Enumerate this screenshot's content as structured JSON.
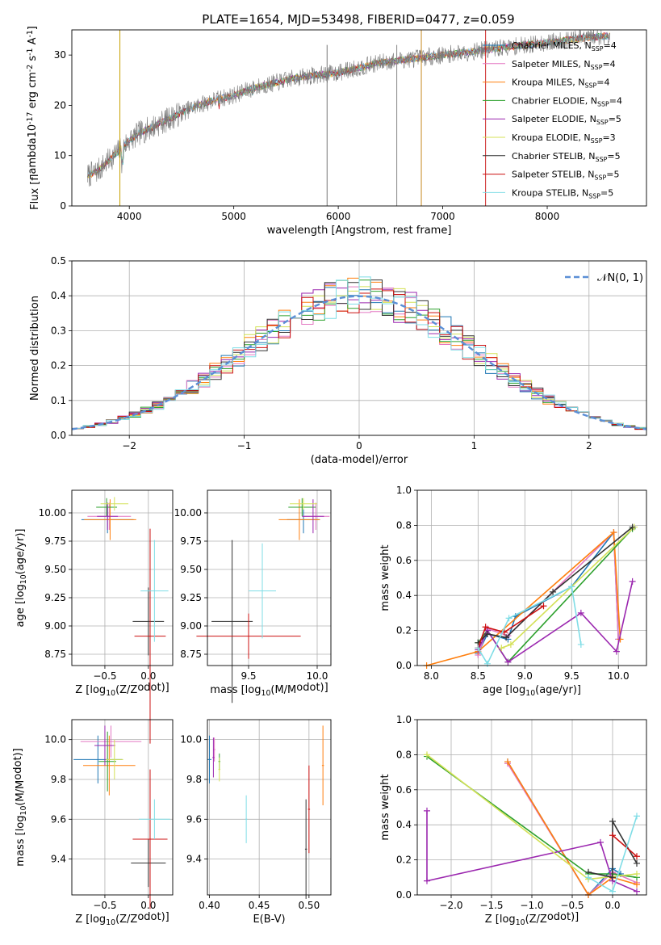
{
  "figure_title": "PLATE=1654, MJD=53498, FIBERID=0477, z=0.059",
  "legend_labels": [
    "Chabrier MILES, N$_{SSP}$=4",
    "Salpeter MILES, N$_{SSP}$=4",
    "Kroupa MILES, N$_{SSP}$=4",
    "Chabrier ELODIE, N$_{SSP}$=4",
    "Salpeter ELODIE, N$_{SSP}$=5",
    "Kroupa ELODIE, N$_{SSP}$=3",
    "Chabrier STELIB, N$_{SSP}$=5",
    "Salpeter STELIB, N$_{SSP}$=5",
    "Kroupa STELIB, N$_{SSP}$=5"
  ],
  "series_colors": [
    "#1f77b4",
    "#e377c2",
    "#ff7f0e",
    "#2ca02c",
    "#9b27af",
    "#d4e157",
    "#333333",
    "#cc1111",
    "#7fdde6"
  ],
  "chart_data": [
    {
      "id": "spectrum",
      "type": "line",
      "xlabel": "wavelength [Angstrom, rest frame]",
      "ylabel": "Flux [f$_\\lambda$10$^{-17}$ erg cm$^{-2}$ s$^{-1}$ A$^{-1}$]",
      "xlim": [
        3450,
        8950
      ],
      "ylim": [
        0,
        35
      ],
      "xticks": [
        4000,
        5000,
        6000,
        7000,
        8000
      ],
      "yticks": [
        0,
        10,
        20,
        30
      ],
      "grid": false,
      "legend_position": "right",
      "continuum": {
        "x": [
          3600,
          3700,
          3800,
          3900,
          4000,
          4100,
          4200,
          4400,
          4600,
          4800,
          5000,
          5200,
          5400,
          5600,
          5800,
          6000,
          6200,
          6400,
          6600,
          6800,
          7000,
          7200,
          7400,
          7600,
          7800,
          8000,
          8200,
          8400,
          8600
        ],
        "y": [
          6,
          7,
          9,
          11,
          13,
          14.5,
          15.5,
          17.5,
          19.5,
          21,
          22,
          23.5,
          24.5,
          25.5,
          26,
          26.5,
          27.5,
          28.5,
          29,
          29.5,
          30,
          30.5,
          31,
          31.5,
          32,
          32.5,
          33,
          33.5,
          33.8
        ]
      }
    },
    {
      "id": "residuals",
      "type": "bar",
      "xlabel": "(data-model)/error",
      "ylabel": "Normed distribution",
      "xlim": [
        -2.5,
        2.5
      ],
      "ylim": [
        0,
        0.5
      ],
      "xticks": [
        -2,
        -1,
        0,
        1,
        2
      ],
      "yticks": [
        0.0,
        0.1,
        0.2,
        0.3,
        0.4,
        0.5
      ],
      "grid": true,
      "legend": "$\\mathcal{N}(0, 1)$",
      "legend_position": "top-right",
      "bin_width": 0.1
    },
    {
      "id": "age-vs-z",
      "type": "scatter",
      "xlabel": "Z [log$_{10}$($Z/Z_\\odot$)]",
      "ylabel": "age  [log$_{10}$($age/yr$)]",
      "xlim": [
        -0.88,
        0.28
      ],
      "ylim": [
        8.65,
        10.2
      ],
      "xticks": [
        -0.5,
        0.0
      ],
      "yticks": [
        8.75,
        9.0,
        9.25,
        9.5,
        9.75,
        10.0
      ],
      "grid": true,
      "points": [
        {
          "x": -0.47,
          "y": 9.94,
          "xerr": 0.3,
          "yerr": 0.12
        },
        {
          "x": -0.45,
          "y": 9.97,
          "xerr": 0.25,
          "yerr": 0.12
        },
        {
          "x": -0.44,
          "y": 9.94,
          "xerr": 0.3,
          "yerr": 0.18
        },
        {
          "x": -0.48,
          "y": 10.05,
          "xerr": 0.12,
          "yerr": 0.08
        },
        {
          "x": -0.47,
          "y": 9.97,
          "xerr": 0.12,
          "yerr": 0.12
        },
        {
          "x": -0.39,
          "y": 10.08,
          "xerr": 0.16,
          "yerr": 0.06
        },
        {
          "x": 0.0,
          "y": 9.04,
          "xerr": 0.18,
          "yerr": 0.3
        },
        {
          "x": 0.02,
          "y": 8.91,
          "xerr": 0.18,
          "yerr": 0.95
        },
        {
          "x": 0.07,
          "y": 9.31,
          "xerr": 0.16,
          "yerr": 0.45
        }
      ]
    },
    {
      "id": "age-vs-mass",
      "type": "scatter",
      "xlabel": "mass [log$_{10}$($M/M_\\odot$)]",
      "ylabel": "",
      "xlim": [
        9.2,
        10.1
      ],
      "ylim": [
        8.65,
        10.2
      ],
      "xticks": [
        9.5,
        10.0
      ],
      "yticks": [
        8.75,
        9.0,
        9.25,
        9.5,
        9.75,
        10.0
      ],
      "grid": true,
      "points": [
        {
          "x": 9.9,
          "y": 9.94,
          "xerr": 0.12,
          "yerr": 0.12
        },
        {
          "x": 9.99,
          "y": 9.97,
          "xerr": 0.1,
          "yerr": 0.12
        },
        {
          "x": 9.87,
          "y": 9.94,
          "xerr": 0.15,
          "yerr": 0.18
        },
        {
          "x": 9.89,
          "y": 10.05,
          "xerr": 0.1,
          "yerr": 0.08
        },
        {
          "x": 9.97,
          "y": 9.97,
          "xerr": 0.08,
          "yerr": 0.15
        },
        {
          "x": 9.9,
          "y": 10.08,
          "xerr": 0.1,
          "yerr": 0.05
        },
        {
          "x": 9.38,
          "y": 9.04,
          "xerr": 0.15,
          "yerr": 0.72
        },
        {
          "x": 9.5,
          "y": 8.91,
          "xerr": 0.38,
          "yerr": 0.2
        },
        {
          "x": 9.6,
          "y": 9.31,
          "xerr": 0.1,
          "yerr": 0.42
        }
      ]
    },
    {
      "id": "weight-vs-age",
      "type": "line",
      "xlabel": "age  [log$_{10}$($age/yr$)]",
      "ylabel": "mass weight",
      "xlim": [
        7.85,
        10.3
      ],
      "ylim": [
        0,
        1.0
      ],
      "xticks": [
        8.0,
        8.5,
        9.0,
        9.5,
        10.0
      ],
      "yticks": [
        0.0,
        0.2,
        0.4,
        0.6,
        0.8,
        1.0
      ],
      "grid": true,
      "series": [
        {
          "x": [
            8.5,
            8.6,
            8.82,
            8.9,
            9.5,
            9.95,
            10.0
          ],
          "y": [
            0.07,
            0.18,
            0.15,
            0.28,
            0.45,
            0.76,
            0.15
          ]
        },
        {
          "x": [
            8.5,
            8.6,
            8.82,
            9.95,
            10.0
          ],
          "y": [
            0.06,
            0.21,
            0.17,
            0.76,
            0.15
          ]
        },
        {
          "x": [
            7.95,
            8.5,
            9.95,
            10.02
          ],
          "y": [
            0.0,
            0.08,
            0.76,
            0.15
          ]
        },
        {
          "x": [
            8.5,
            8.6,
            8.82,
            10.15
          ],
          "y": [
            0.13,
            0.2,
            0.02,
            0.78
          ]
        },
        {
          "x": [
            8.5,
            8.6,
            8.82,
            9.6,
            9.98,
            10.15
          ],
          "y": [
            0.09,
            0.2,
            0.02,
            0.3,
            0.08,
            0.48
          ]
        },
        {
          "x": [
            8.75,
            8.85,
            10.17
          ],
          "y": [
            0.1,
            0.12,
            0.79
          ]
        },
        {
          "x": [
            8.5,
            8.6,
            8.8,
            9.3,
            10.15
          ],
          "y": [
            0.13,
            0.18,
            0.16,
            0.42,
            0.79
          ]
        },
        {
          "x": [
            8.5,
            8.58,
            8.78,
            9.2
          ],
          "y": [
            0.1,
            0.22,
            0.19,
            0.34
          ]
        },
        {
          "x": [
            8.5,
            8.6,
            8.83,
            9.5,
            9.6
          ],
          "y": [
            0.1,
            0.01,
            0.27,
            0.45,
            0.12
          ]
        }
      ]
    },
    {
      "id": "mass-vs-z",
      "type": "scatter",
      "xlabel": "Z [log$_{10}$($Z/Z_\\odot$)]",
      "ylabel": "mass [log$_{10}$($M/M_\\odot$)]",
      "xlim": [
        -0.88,
        0.28
      ],
      "ylim": [
        9.22,
        10.1
      ],
      "xticks": [
        -0.5,
        0.0
      ],
      "yticks": [
        9.4,
        9.6,
        9.8,
        10.0
      ],
      "grid": true,
      "points": [
        {
          "x": -0.58,
          "y": 9.9,
          "xerr": 0.28,
          "yerr": 0.12
        },
        {
          "x": -0.43,
          "y": 9.99,
          "xerr": 0.35,
          "yerr": 0.08
        },
        {
          "x": -0.45,
          "y": 9.87,
          "xerr": 0.3,
          "yerr": 0.15
        },
        {
          "x": -0.47,
          "y": 9.89,
          "xerr": 0.1,
          "yerr": 0.15
        },
        {
          "x": -0.5,
          "y": 9.97,
          "xerr": 0.12,
          "yerr": 0.1
        },
        {
          "x": -0.39,
          "y": 9.9,
          "xerr": 0.1,
          "yerr": 0.1
        },
        {
          "x": 0.0,
          "y": 9.38,
          "xerr": 0.2,
          "yerr": 0.12
        },
        {
          "x": 0.02,
          "y": 9.5,
          "xerr": 0.2,
          "yerr": 0.35
        },
        {
          "x": 0.07,
          "y": 9.6,
          "xerr": 0.18,
          "yerr": 0.1
        }
      ]
    },
    {
      "id": "mass-vs-ebv",
      "type": "scatter",
      "xlabel": "E(B-V)",
      "ylabel": "",
      "xlim": [
        0.398,
        0.522
      ],
      "ylim": [
        9.22,
        10.1
      ],
      "xticks": [
        0.4,
        0.45,
        0.5
      ],
      "yticks": [
        9.4,
        9.6,
        9.8,
        10.0
      ],
      "grid": true,
      "points": [
        {
          "x": 0.4,
          "y": 9.9,
          "xerr": 0.002,
          "yerr": 0.12
        },
        {
          "x": 0.405,
          "y": 9.95,
          "xerr": 0.001,
          "yerr": 0.06
        },
        {
          "x": 0.514,
          "y": 9.87,
          "xerr": 0.001,
          "yerr": 0.2
        },
        {
          "x": 0.41,
          "y": 9.89,
          "xerr": 0.001,
          "yerr": 0.04
        },
        {
          "x": 0.404,
          "y": 9.91,
          "xerr": 0.001,
          "yerr": 0.1
        },
        {
          "x": 0.41,
          "y": 9.85,
          "xerr": 0.001,
          "yerr": 0.06
        },
        {
          "x": 0.497,
          "y": 9.45,
          "xerr": 0.001,
          "yerr": 0.25
        },
        {
          "x": 0.5,
          "y": 9.65,
          "xerr": 0.001,
          "yerr": 0.22
        },
        {
          "x": 0.437,
          "y": 9.6,
          "xerr": 0.001,
          "yerr": 0.12
        }
      ]
    },
    {
      "id": "weight-vs-z",
      "type": "line",
      "xlabel": "Z [log$_{10}$($Z/Z_\\odot$)]",
      "ylabel": "mass weight",
      "xlim": [
        -2.42,
        0.42
      ],
      "ylim": [
        0,
        1.0
      ],
      "xticks": [
        -2.0,
        -1.5,
        -1.0,
        -0.5,
        0.0
      ],
      "yticks": [
        0.0,
        0.2,
        0.4,
        0.6,
        0.8,
        1.0
      ],
      "grid": true,
      "series": [
        {
          "x": [
            -1.3,
            -0.3,
            0.0,
            0.1
          ],
          "y": [
            0.76,
            0.0,
            0.15,
            0.12
          ]
        },
        {
          "x": [
            -1.3,
            -0.3,
            0.0,
            0.3
          ],
          "y": [
            0.75,
            0.0,
            0.13,
            0.07
          ]
        },
        {
          "x": [
            -1.3,
            -0.3,
            0.0,
            0.3
          ],
          "y": [
            0.76,
            0.0,
            0.1,
            0.06
          ]
        },
        {
          "x": [
            -2.3,
            -0.3,
            0.0,
            0.3
          ],
          "y": [
            0.79,
            0.12,
            0.12,
            0.1
          ]
        },
        {
          "x": [
            -2.3,
            -2.3,
            -0.15,
            0.0,
            0.3
          ],
          "y": [
            0.48,
            0.08,
            0.3,
            0.08,
            0.02
          ]
        },
        {
          "x": [
            -2.3,
            -0.3,
            0.3
          ],
          "y": [
            0.8,
            0.09,
            0.12
          ]
        },
        {
          "x": [
            -0.3,
            0.0,
            0.0,
            0.3
          ],
          "y": [
            0.13,
            0.1,
            0.42,
            0.18
          ]
        },
        {
          "x": [
            0.0,
            0.3
          ],
          "y": [
            0.34,
            0.22
          ]
        },
        {
          "x": [
            -0.3,
            0.0,
            0.3
          ],
          "y": [
            0.1,
            0.02,
            0.45
          ]
        }
      ]
    }
  ]
}
